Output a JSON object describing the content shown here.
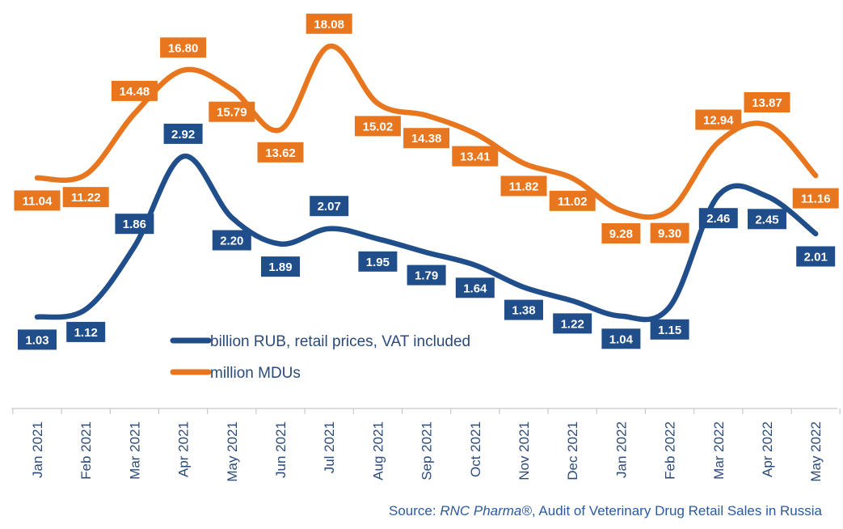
{
  "chart_data": {
    "type": "line",
    "categories": [
      "Jan 2021",
      "Feb 2021",
      "Mar 2021",
      "Apr 2021",
      "May 2021",
      "Jun 2021",
      "Jul 2021",
      "Aug 2021",
      "Sep 2021",
      "Oct 2021",
      "Nov 2021",
      "Dec 2021",
      "Jan 2022",
      "Feb 2022",
      "Mar 2022",
      "Apr 2022",
      "May 2022"
    ],
    "series": [
      {
        "name": "billion RUB, retail prices, VAT included",
        "color": "#1f4e8a",
        "values": [
          1.03,
          1.12,
          1.86,
          2.92,
          2.2,
          1.89,
          2.07,
          1.95,
          1.79,
          1.64,
          1.38,
          1.22,
          1.04,
          1.15,
          2.46,
          2.45,
          2.01
        ],
        "labels": [
          "1.03",
          "1.12",
          "1.86",
          "2.92",
          "2.20",
          "1.89",
          "2.07",
          "1.95",
          "1.79",
          "1.64",
          "1.38",
          "1.22",
          "1.04",
          "1.15",
          "2.46",
          "2.45",
          "2.01"
        ]
      },
      {
        "name": "million MDUs",
        "color": "#e8761e",
        "values": [
          11.04,
          11.22,
          14.48,
          16.8,
          15.79,
          13.62,
          18.08,
          15.02,
          14.38,
          13.41,
          11.82,
          11.02,
          9.28,
          9.3,
          12.94,
          13.87,
          11.16
        ],
        "labels": [
          "11.04",
          "11.22",
          "14.48",
          "16.80",
          "15.79",
          "13.62",
          "18.08",
          "15.02",
          "14.38",
          "13.41",
          "11.82",
          "11.02",
          "9.28",
          "9.30",
          "12.94",
          "13.87",
          "11.16"
        ]
      }
    ],
    "legend_position": "center-left",
    "grid": false
  },
  "source": {
    "prefix": "Source: ",
    "brand": "RNC Pharma®",
    "suffix": ", Audit of Veterinary Drug Retail Sales in Russia"
  }
}
